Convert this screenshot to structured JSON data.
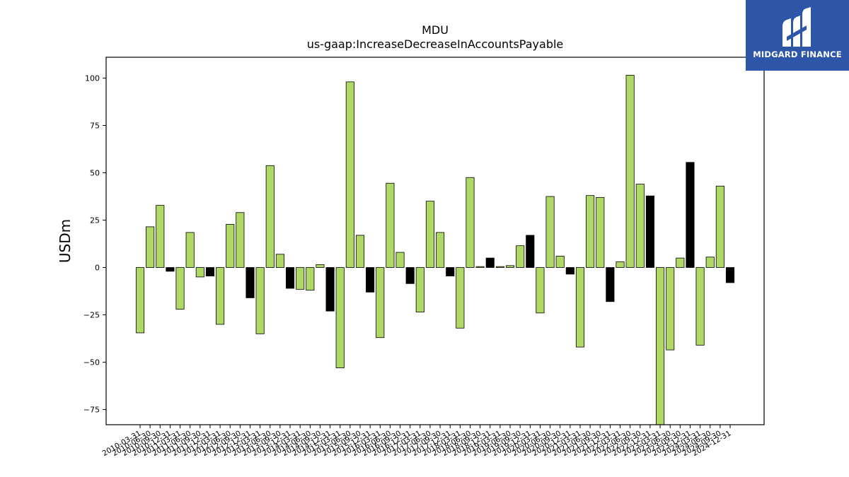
{
  "chart_data": {
    "type": "bar",
    "title": "MDU",
    "subtitle": "us-gaap:IncreaseDecreaseInAccountsPayable",
    "xlabel": "",
    "ylabel": "USDm",
    "ylim": [
      -83,
      111
    ],
    "yticks": [
      -75,
      -50,
      -25,
      0,
      25,
      50,
      75,
      100
    ],
    "grid": false,
    "colors": {
      "default": "#b0d866",
      "highlight": "#000000"
    },
    "categories": [
      "2010-03-31",
      "2010-06-30",
      "2010-09-30",
      "2010-12-31",
      "2011-03-31",
      "2011-06-30",
      "2011-09-30",
      "2011-12-31",
      "2012-03-31",
      "2012-06-30",
      "2012-09-30",
      "2012-12-31",
      "2013-03-31",
      "2013-06-30",
      "2013-09-30",
      "2013-12-31",
      "2014-03-31",
      "2014-06-30",
      "2014-09-30",
      "2014-12-31",
      "2015-03-31",
      "2015-06-30",
      "2015-09-30",
      "2015-12-31",
      "2016-03-31",
      "2016-06-30",
      "2016-09-30",
      "2016-12-31",
      "2017-03-31",
      "2017-06-30",
      "2017-09-30",
      "2017-12-31",
      "2018-03-31",
      "2018-06-30",
      "2018-09-30",
      "2018-12-31",
      "2019-03-31",
      "2019-06-30",
      "2019-09-30",
      "2019-12-31",
      "2020-03-31",
      "2020-06-30",
      "2020-09-30",
      "2020-12-31",
      "2021-03-31",
      "2021-06-30",
      "2021-09-30",
      "2021-12-31",
      "2022-03-31",
      "2022-06-30",
      "2022-09-30",
      "2022-12-31",
      "2023-03-31",
      "2023-06-30",
      "2023-09-30",
      "2023-12-31",
      "2024-03-31",
      "2024-06-30",
      "2024-09-30",
      "2024-12-31"
    ],
    "values": [
      -34.5,
      21.5,
      32.8,
      -2,
      -22,
      18.5,
      -5,
      -4.5,
      -30,
      22.8,
      29,
      -16,
      -35,
      53.8,
      7,
      -11,
      -11.5,
      -12,
      1.5,
      -23,
      -53,
      98,
      17,
      -13,
      -37,
      44.5,
      8,
      -8.5,
      -23.5,
      35,
      18.5,
      -4.5,
      -32,
      47.5,
      0.5,
      5,
      0.5,
      1,
      11.5,
      17,
      -24,
      37.5,
      6,
      -3.5,
      -42,
      38,
      37,
      -18,
      3,
      101.5,
      44,
      37.8,
      -83,
      -43.5,
      5,
      55.5,
      -41,
      5.5,
      43,
      -8
    ],
    "highlight": [
      false,
      false,
      false,
      true,
      false,
      false,
      false,
      true,
      false,
      false,
      false,
      true,
      false,
      false,
      false,
      true,
      false,
      false,
      false,
      true,
      false,
      false,
      false,
      true,
      false,
      false,
      false,
      true,
      false,
      false,
      false,
      true,
      false,
      false,
      false,
      true,
      false,
      false,
      false,
      true,
      false,
      false,
      false,
      true,
      false,
      false,
      false,
      true,
      false,
      false,
      false,
      true,
      false,
      false,
      false,
      true,
      false,
      false,
      false,
      true
    ]
  },
  "logo": {
    "text": "MIDGARD FINANCE",
    "background": "#2d55a8"
  }
}
